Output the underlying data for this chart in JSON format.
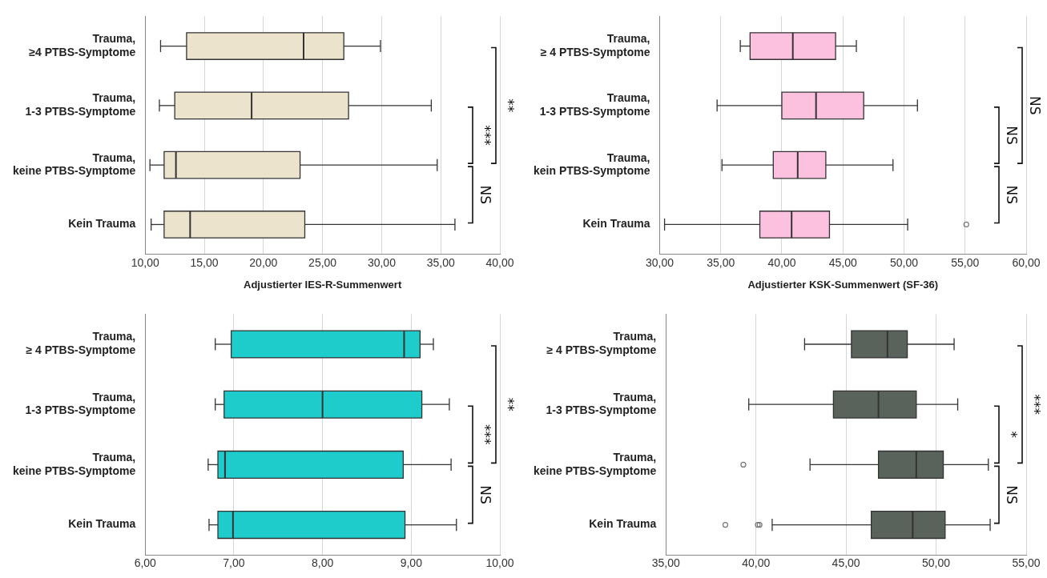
{
  "chart_data": [
    {
      "type": "box",
      "orientation": "horizontal",
      "xlabel": "Adjustierter IES-R-Summenwert",
      "categories": [
        "Trauma, ≥4 PTBS-Symptome",
        "Trauma, 1-3 PTBS-Symptome",
        "Trauma, keine PTBS-Symptome",
        "Kein Trauma"
      ],
      "xlim": [
        10,
        40
      ],
      "xticks": [
        {
          "value": 10,
          "label": "10,00"
        },
        {
          "value": 15,
          "label": "15,00"
        },
        {
          "value": 20,
          "label": "20,00"
        },
        {
          "value": 25,
          "label": "25,00"
        },
        {
          "value": 30,
          "label": "30,00"
        },
        {
          "value": 35,
          "label": "35,00"
        },
        {
          "value": 40,
          "label": "40,00"
        }
      ],
      "grid": "x",
      "annotations": [
        "**",
        "***",
        "NS"
      ],
      "series": [
        {
          "color": "#ebe3cc",
          "boxes": [
            {
              "low": 11.3,
              "q1": 13.5,
              "median": 23.4,
              "q3": 26.8,
              "high": 29.9
            },
            {
              "low": 11.2,
              "q1": 12.5,
              "median": 19.0,
              "q3": 27.2,
              "high": 34.2
            },
            {
              "low": 10.4,
              "q1": 11.6,
              "median": 12.6,
              "q3": 23.1,
              "high": 34.7
            },
            {
              "low": 10.5,
              "q1": 11.6,
              "median": 13.8,
              "q3": 23.5,
              "high": 36.2
            }
          ]
        }
      ]
    },
    {
      "type": "box",
      "orientation": "horizontal",
      "xlabel": "Adjustierter KSK-Summenwert (SF-36)",
      "categories": [
        "Trauma, ≥ 4 PTBS-Symptome",
        "Trauma, 1-3 PTBS-Symptome",
        "Trauma, kein PTBS-Symptome",
        "Kein Trauma"
      ],
      "xlim": [
        30,
        60
      ],
      "xticks": [
        {
          "value": 30,
          "label": "30,00"
        },
        {
          "value": 35,
          "label": "35,00"
        },
        {
          "value": 40,
          "label": "40,00"
        },
        {
          "value": 45,
          "label": "45,00"
        },
        {
          "value": 50,
          "label": "50,00"
        },
        {
          "value": 55,
          "label": "55,00"
        },
        {
          "value": 60,
          "label": "60,00"
        }
      ],
      "grid": "x",
      "annotations": [
        "NS",
        "NS",
        "NS"
      ],
      "series": [
        {
          "color": "#fdc1e0",
          "boxes": [
            {
              "low": 36.6,
              "q1": 37.4,
              "median": 40.9,
              "q3": 44.4,
              "high": 46.1
            },
            {
              "low": 34.7,
              "q1": 40.0,
              "median": 42.8,
              "q3": 46.7,
              "high": 51.1
            },
            {
              "low": 35.1,
              "q1": 39.3,
              "median": 41.3,
              "q3": 43.6,
              "high": 49.1
            },
            {
              "low": 30.4,
              "q1": 38.2,
              "median": 40.8,
              "q3": 43.9,
              "high": 50.3,
              "outliers": [
                55.1
              ]
            }
          ]
        }
      ]
    },
    {
      "type": "box",
      "orientation": "horizontal",
      "categories": [
        "Trauma, ≥ 4 PTBS-Symptome",
        "Trauma, 1-3 PTBS-Symptome",
        "Trauma, keine PTBS-Symptome",
        "Kein Trauma"
      ],
      "xlim": [
        6,
        10
      ],
      "xticks": [
        {
          "value": 6,
          "label": "6,00"
        },
        {
          "value": 7,
          "label": "7,00"
        },
        {
          "value": 8,
          "label": "8,00"
        },
        {
          "value": 9,
          "label": "9,00"
        },
        {
          "value": 10,
          "label": "10,00"
        }
      ],
      "grid": "x",
      "annotations": [
        "**",
        "***",
        "NS"
      ],
      "series": [
        {
          "color": "#1fcccc",
          "boxes": [
            {
              "low": 6.79,
              "q1": 6.97,
              "median": 8.92,
              "q3": 9.1,
              "high": 9.25
            },
            {
              "low": 6.79,
              "q1": 6.89,
              "median": 8.0,
              "q3": 9.12,
              "high": 9.43
            },
            {
              "low": 6.71,
              "q1": 6.82,
              "median": 6.9,
              "q3": 8.91,
              "high": 9.45
            },
            {
              "low": 6.72,
              "q1": 6.82,
              "median": 6.99,
              "q3": 8.93,
              "high": 9.51
            }
          ]
        }
      ]
    },
    {
      "type": "box",
      "orientation": "horizontal",
      "categories": [
        "Trauma, ≥ 4 PTBS-Symptome",
        "Trauma, 1-3 PTBS-Symptome",
        "Trauma, keine PTBS-Symptome",
        "Kein Trauma"
      ],
      "xlim": [
        35,
        55
      ],
      "xticks": [
        {
          "value": 35,
          "label": "35,00"
        },
        {
          "value": 40,
          "label": "40,00"
        },
        {
          "value": 45,
          "label": "45,00"
        },
        {
          "value": 50,
          "label": "50,00"
        },
        {
          "value": 55,
          "label": "55,00"
        }
      ],
      "grid": "x",
      "annotations": [
        "***",
        "*",
        "NS"
      ],
      "series": [
        {
          "color": "#5a625c",
          "boxes": [
            {
              "low": 42.7,
              "q1": 45.3,
              "median": 47.3,
              "q3": 48.4,
              "high": 51.0
            },
            {
              "low": 39.6,
              "q1": 44.3,
              "median": 46.8,
              "q3": 48.9,
              "high": 51.2
            },
            {
              "low": 43.0,
              "q1": 46.8,
              "median": 48.9,
              "q3": 50.4,
              "high": 52.9,
              "outliers": [
                39.3
              ]
            },
            {
              "low": 40.9,
              "q1": 46.4,
              "median": 48.7,
              "q3": 50.5,
              "high": 53.0,
              "outliers": [
                38.3,
                40.1,
                40.2
              ]
            }
          ]
        }
      ]
    }
  ]
}
